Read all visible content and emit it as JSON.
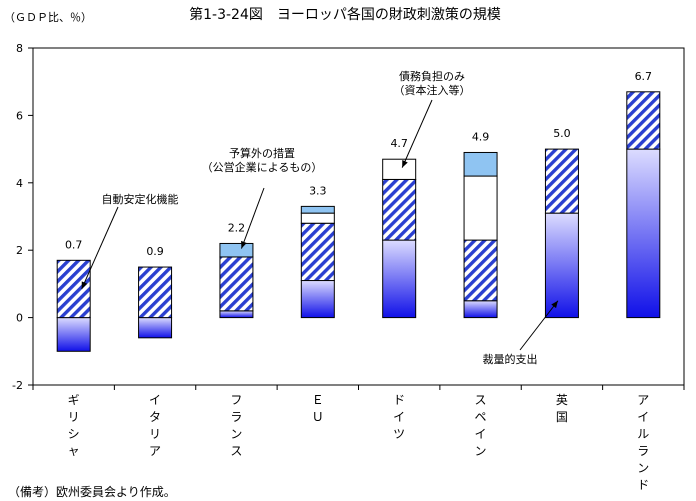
{
  "chart_data": {
    "type": "bar",
    "stacked": true,
    "title": "第1-3-24図　ヨーロッパ各国の財政刺激策の規模",
    "unit_label": "（ＧＤＰ比、％）",
    "categories": [
      "ギリシャ",
      "イタリア",
      "フランス",
      "ＥＵ",
      "ドイツ",
      "スペイン",
      "英国",
      "アイルランド"
    ],
    "totals": [
      "0.7",
      "0.9",
      "2.2",
      "3.3",
      "4.7",
      "4.9",
      "5.0",
      "6.7"
    ],
    "series": [
      {
        "key": "discretionary",
        "values": [
          -1.0,
          -0.6,
          0.2,
          1.1,
          2.3,
          0.5,
          3.1,
          5.0
        ]
      },
      {
        "key": "stabilizers",
        "values": [
          1.7,
          1.5,
          1.6,
          1.7,
          1.8,
          1.8,
          1.9,
          1.7
        ]
      },
      {
        "key": "debt",
        "values": [
          0,
          0,
          0,
          0.3,
          0.6,
          1.9,
          0,
          0
        ]
      },
      {
        "key": "guarantee",
        "values": [
          0,
          0,
          0.4,
          0.2,
          0,
          0.7,
          0,
          0
        ]
      }
    ],
    "ylim": [
      -2,
      8
    ],
    "yticks": [
      -2,
      0,
      2,
      4,
      6,
      8
    ],
    "grid": false,
    "annotations": [
      {
        "key": "stabilizers",
        "lines": [
          "自動安定化機能"
        ]
      },
      {
        "key": "guarantee",
        "lines": [
          "予算外の措置",
          "（公営企業によるもの）"
        ]
      },
      {
        "key": "debt",
        "lines": [
          "債務負担のみ",
          "（資本注入等）"
        ]
      },
      {
        "key": "discretionary",
        "lines": [
          "裁量的支出"
        ]
      }
    ],
    "colors": {
      "discretionary_top": "#dcdcff",
      "discretionary_bottom": "#1010e8",
      "stabilizers_stripe": "#2a3fd0",
      "debt": "#ffffff",
      "guarantee": "#8fc4f2",
      "outline": "#000000"
    }
  },
  "note": "（備考）欧州委員会より作成。"
}
